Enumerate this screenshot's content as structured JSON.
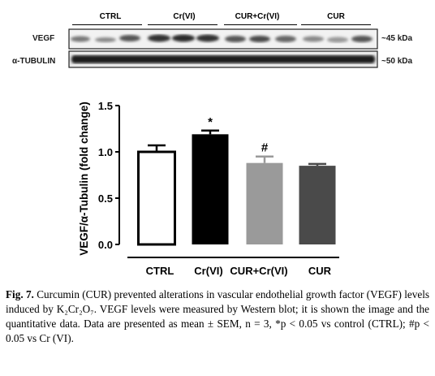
{
  "blot": {
    "groups": [
      "CTRL",
      "Cr(VI)",
      "CUR+Cr(VI)",
      "CUR"
    ],
    "rows": [
      {
        "label": "VEGF",
        "size": "~45 kDa"
      },
      {
        "label": "α-TUBULIN",
        "size": "~50 kDa"
      }
    ]
  },
  "chart_data": {
    "type": "bar",
    "categories": [
      "CTRL",
      "Cr(VI)",
      "CUR+Cr(VI)",
      "CUR"
    ],
    "values": [
      1.0,
      1.19,
      0.88,
      0.85
    ],
    "errors": [
      0.07,
      0.04,
      0.07,
      0.02
    ],
    "annotations": [
      "",
      "*",
      "#",
      ""
    ],
    "ylabel": "VEGF/α-Tubulin (fold change)",
    "ylim": [
      0,
      1.5
    ],
    "yticks": [
      "0.0",
      "0.5",
      "1.0",
      "1.5"
    ],
    "colors": [
      "#ffffff",
      "#000000",
      "#9a9a9a",
      "#4a4a4a"
    ],
    "grid": false
  },
  "caption": {
    "label": "Fig. 7.",
    "text": "Curcumin (CUR) prevented alterations in vascular endothelial growth factor (VEGF) levels induced by K₂Cr₂O₇. VEGF levels were measured by Western blot; it is shown the image and the quantitative data. Data are presented as mean ± SEM, n = 3, *p < 0.05 vs control (CTRL); #p < 0.05 vs Cr (VI)."
  }
}
